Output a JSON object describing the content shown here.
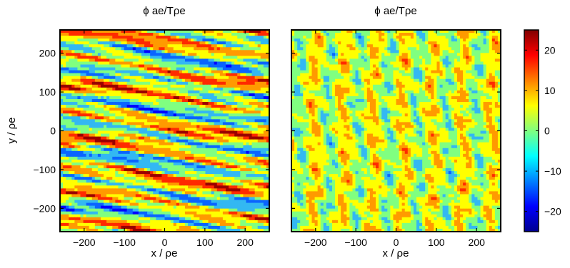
{
  "chart_data": [
    {
      "type": "heatmap",
      "title": "ϕ ae/Tρe",
      "xlabel": "x / ρe",
      "ylabel": "y / ρe",
      "xlim": [
        -260,
        260
      ],
      "ylim": [
        -260,
        260
      ],
      "xticks": [
        -200,
        -100,
        0,
        100,
        200
      ],
      "yticks": [
        -200,
        -100,
        0,
        100,
        200
      ],
      "xtick_labels": [
        "−200",
        "−100",
        "0",
        "100",
        "200"
      ],
      "ytick_labels": [
        "−200",
        "−100",
        "0",
        "100",
        "200"
      ],
      "structure": "streaks elongated along x, tilted downward to the right, spanning about -25 to +20"
    },
    {
      "type": "heatmap",
      "title": "ϕ ae/Tρe",
      "xlabel": "x / ρe",
      "ylabel": "",
      "xlim": [
        -260,
        260
      ],
      "ylim": [
        -260,
        260
      ],
      "xticks": [
        -200,
        -100,
        0,
        100,
        200
      ],
      "xtick_labels": [
        "−200",
        "−100",
        "0",
        "100",
        "200"
      ],
      "structure": "cells elongated along y, arranged in vertical stripes, spanning about -10 to +10"
    }
  ],
  "colorbar": {
    "range": [
      -25,
      25
    ],
    "ticks": [
      20,
      10,
      0,
      -10,
      -20
    ],
    "tick_labels": [
      "20",
      "10",
      "0",
      "−10",
      "−20"
    ],
    "colormap": "jet",
    "colors": [
      "#00008f",
      "#0000ff",
      "#0080ff",
      "#00ffff",
      "#80ff80",
      "#ffff00",
      "#ff8000",
      "#ff0000",
      "#800000"
    ]
  }
}
